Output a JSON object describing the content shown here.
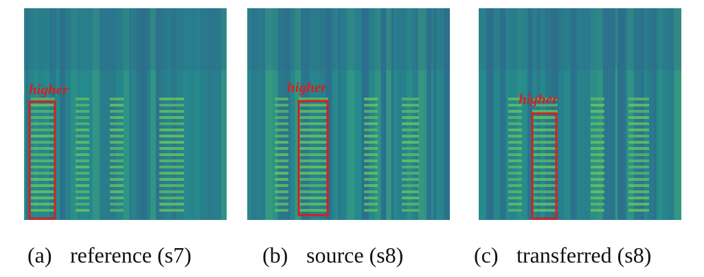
{
  "panels": [
    {
      "label": "(a)",
      "caption": "reference (s7)",
      "annotation": "higher"
    },
    {
      "label": "(b)",
      "caption": "source (s8)",
      "annotation": "higher"
    },
    {
      "label": "(c)",
      "caption": "transferred (s8)",
      "annotation": "higher"
    }
  ]
}
